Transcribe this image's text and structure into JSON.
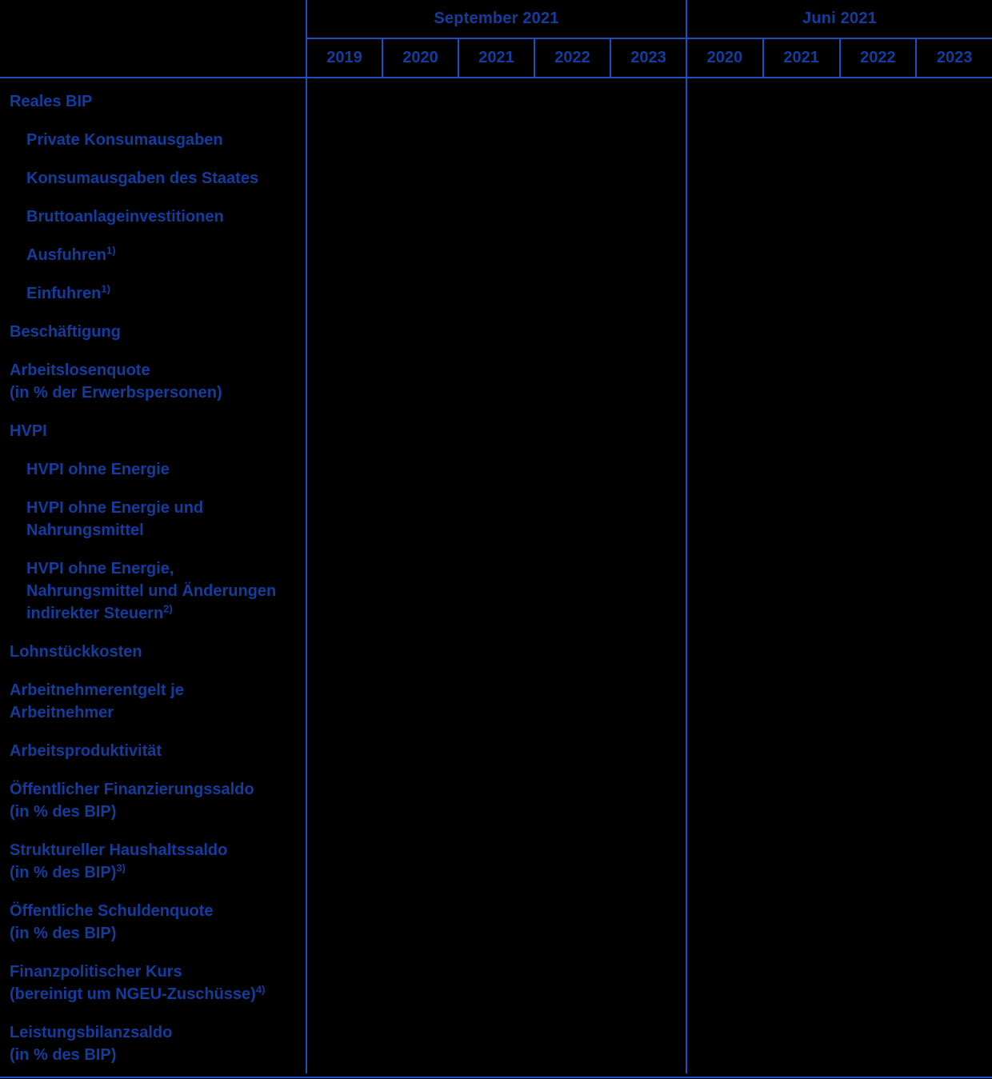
{
  "table": {
    "col_groups": [
      {
        "title": "September 2021",
        "years": [
          "2019",
          "2020",
          "2021",
          "2022",
          "2023"
        ]
      },
      {
        "title": "Juni 2021",
        "years": [
          "2020",
          "2021",
          "2022",
          "2023"
        ]
      }
    ],
    "rows": [
      {
        "label_lines": [
          "Reales BIP"
        ],
        "indent": false,
        "sup": ""
      },
      {
        "label_lines": [
          "Private Konsumausgaben"
        ],
        "indent": true,
        "sup": ""
      },
      {
        "label_lines": [
          "Konsumausgaben des Staates"
        ],
        "indent": true,
        "sup": ""
      },
      {
        "label_lines": [
          "Bruttoanlageinvestitionen"
        ],
        "indent": true,
        "sup": ""
      },
      {
        "label_lines": [
          "Ausfuhren"
        ],
        "indent": true,
        "sup": "1)"
      },
      {
        "label_lines": [
          "Einfuhren"
        ],
        "indent": true,
        "sup": "1)"
      },
      {
        "label_lines": [
          "Beschäftigung"
        ],
        "indent": false,
        "sup": ""
      },
      {
        "label_lines": [
          "Arbeitslosenquote",
          "(in % der Erwerbspersonen)"
        ],
        "indent": false,
        "sup": ""
      },
      {
        "label_lines": [
          "HVPI"
        ],
        "indent": false,
        "sup": ""
      },
      {
        "label_lines": [
          "HVPI ohne Energie"
        ],
        "indent": true,
        "sup": ""
      },
      {
        "label_lines": [
          "HVPI ohne Energie und",
          "Nahrungsmittel"
        ],
        "indent": true,
        "sup": ""
      },
      {
        "label_lines": [
          "HVPI ohne Energie,",
          "Nahrungsmittel und Änderungen",
          "indirekter Steuern"
        ],
        "indent": true,
        "sup": "2)"
      },
      {
        "label_lines": [
          "Lohnstückkosten"
        ],
        "indent": false,
        "sup": ""
      },
      {
        "label_lines": [
          "Arbeitnehmerentgelt je",
          "Arbeitnehmer"
        ],
        "indent": false,
        "sup": ""
      },
      {
        "label_lines": [
          "Arbeitsproduktivität"
        ],
        "indent": false,
        "sup": ""
      },
      {
        "label_lines": [
          "Öffentlicher Finanzierungssaldo",
          "(in % des BIP)"
        ],
        "indent": false,
        "sup": ""
      },
      {
        "label_lines": [
          "Struktureller Haushaltssaldo",
          "(in % des BIP)"
        ],
        "indent": false,
        "sup": "3)"
      },
      {
        "label_lines": [
          "Öffentliche Schuldenquote",
          "(in % des BIP)"
        ],
        "indent": false,
        "sup": ""
      },
      {
        "label_lines": [
          "Finanzpolitischer Kurs",
          "(bereinigt um NGEU-Zuschüsse)"
        ],
        "indent": false,
        "sup": "4)"
      },
      {
        "label_lines": [
          "Leistungsbilanzsaldo",
          "(in % des BIP)"
        ],
        "indent": false,
        "sup": ""
      }
    ]
  },
  "colors": {
    "background": "#000000",
    "text": "#143c9e",
    "rule": "#1d4fc2"
  }
}
